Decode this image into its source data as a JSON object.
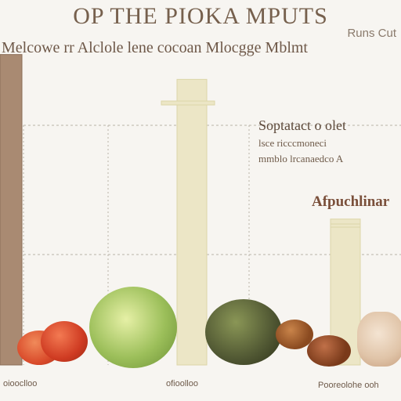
{
  "header": {
    "title": "OP THE PIOKA MPUTS",
    "subtitle": "Melcowe rr Alclole lene cocoan Mlocgge Mblmt",
    "corner_label": "Runs Cut"
  },
  "legend": {
    "title": "Soptatact o olet",
    "lines": [
      "lsce ricccmoneci",
      "mmblo lrcanaedco A"
    ]
  },
  "annotation": "Afpuchlinar",
  "x_labels": [
    "oiooclloo",
    "ofioolloo",
    "Pooreolohe ooh"
  ],
  "colors": {
    "background": "#f7f5f1",
    "bar_brown": "#a98a72",
    "bar_cream": "#ece6c6",
    "bar_cream_edge": "#dcd5a8",
    "grid": "#b8b2a8",
    "apple": "#9cbf5a",
    "avocado": "#4f5632",
    "tomato": "#d94a2a",
    "nuts": "#8a4a20"
  },
  "chart_data": {
    "type": "bar",
    "categories": [
      "oiooclloo",
      "ofioolloo",
      "Pooreolohe ooh"
    ],
    "series": [
      {
        "values": [
          100,
          92,
          47
        ]
      }
    ],
    "ylim": [
      0,
      110
    ],
    "grid": true,
    "legend_position": "right"
  }
}
